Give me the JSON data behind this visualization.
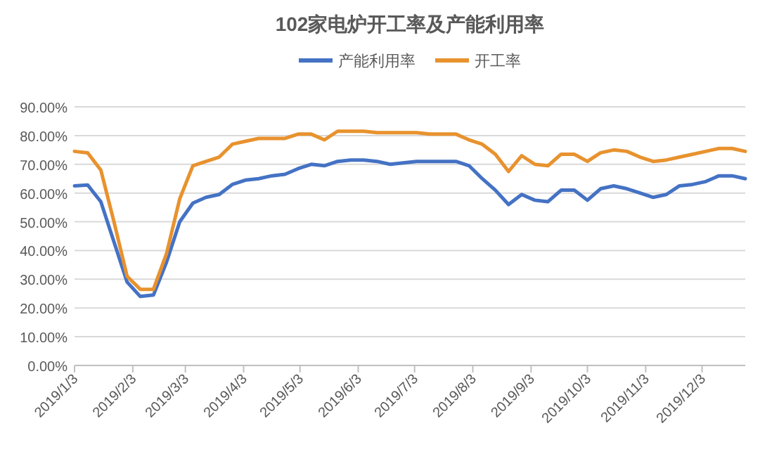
{
  "chart_data": {
    "type": "line",
    "title": "102家电炉开工率及产能利用率",
    "x": [
      "2019-01-03",
      "2019-01-10",
      "2019-01-17",
      "2019-01-24",
      "2019-01-31",
      "2019-02-07",
      "2019-02-14",
      "2019-02-21",
      "2019-02-28",
      "2019-03-07",
      "2019-03-14",
      "2019-03-21",
      "2019-03-28",
      "2019-04-04",
      "2019-04-11",
      "2019-04-18",
      "2019-04-25",
      "2019-05-02",
      "2019-05-09",
      "2019-05-16",
      "2019-05-23",
      "2019-05-30",
      "2019-06-06",
      "2019-06-13",
      "2019-06-20",
      "2019-06-27",
      "2019-07-04",
      "2019-07-11",
      "2019-07-18",
      "2019-07-25",
      "2019-08-01",
      "2019-08-08",
      "2019-08-15",
      "2019-08-22",
      "2019-08-29",
      "2019-09-05",
      "2019-09-12",
      "2019-09-19",
      "2019-09-26",
      "2019-10-03",
      "2019-10-10",
      "2019-10-17",
      "2019-10-24",
      "2019-10-31",
      "2019-11-07",
      "2019-11-14",
      "2019-11-21",
      "2019-11-28",
      "2019-12-05",
      "2019-12-12",
      "2019-12-19",
      "2019-12-26"
    ],
    "series": [
      {
        "name": "产能利用率",
        "color": "#4472c4",
        "values": [
          62.5,
          62.8,
          57,
          43,
          29,
          24,
          24.5,
          36,
          50,
          56.5,
          58.5,
          59.5,
          63,
          64.5,
          65,
          66,
          66.5,
          68.5,
          70,
          69.5,
          71,
          71.5,
          71.5,
          71,
          70,
          70.5,
          71,
          71,
          71,
          71,
          69.5,
          65,
          61,
          56,
          59.5,
          57.5,
          57,
          61,
          61,
          57.5,
          61.5,
          62.5,
          61.5,
          60,
          58.5,
          59.5,
          62.5,
          63,
          64,
          66,
          66,
          65
        ]
      },
      {
        "name": "开工率",
        "color": "#e8922e",
        "values": [
          74.5,
          74,
          68,
          50,
          31,
          26.5,
          26.5,
          39,
          58,
          69.5,
          71,
          72.5,
          77,
          78,
          79,
          79,
          79,
          80.5,
          80.5,
          78.5,
          81.5,
          81.5,
          81.5,
          81,
          81,
          81,
          81,
          80.5,
          80.5,
          80.5,
          78.5,
          77,
          73.5,
          67.5,
          73,
          70,
          69.5,
          73.5,
          73.5,
          71,
          74,
          75,
          74.5,
          72.5,
          71,
          71.5,
          72.5,
          73.5,
          74.5,
          75.5,
          75.5,
          74.5
        ]
      }
    ],
    "xlim": [
      "2019-01-03",
      "2019-12-26"
    ],
    "xticks": [
      {
        "value": "2019-01-03",
        "label": "2019/1/3"
      },
      {
        "value": "2019-02-03",
        "label": "2019/2/3"
      },
      {
        "value": "2019-03-03",
        "label": "2019/3/3"
      },
      {
        "value": "2019-04-03",
        "label": "2019/4/3"
      },
      {
        "value": "2019-05-03",
        "label": "2019/5/3"
      },
      {
        "value": "2019-06-03",
        "label": "2019/6/3"
      },
      {
        "value": "2019-07-03",
        "label": "2019/7/3"
      },
      {
        "value": "2019-08-03",
        "label": "2019/8/3"
      },
      {
        "value": "2019-09-03",
        "label": "2019/9/3"
      },
      {
        "value": "2019-10-03",
        "label": "2019/10/3"
      },
      {
        "value": "2019-11-03",
        "label": "2019/11/3"
      },
      {
        "value": "2019-12-03",
        "label": "2019/12/3"
      }
    ],
    "ylim": [
      0,
      90
    ],
    "yticks": [
      {
        "value": 0,
        "label": "0.00%"
      },
      {
        "value": 10,
        "label": "10.00%"
      },
      {
        "value": 20,
        "label": "20.00%"
      },
      {
        "value": 30,
        "label": "30.00%"
      },
      {
        "value": 40,
        "label": "40.00%"
      },
      {
        "value": 50,
        "label": "50.00%"
      },
      {
        "value": 60,
        "label": "60.00%"
      },
      {
        "value": 70,
        "label": "70.00%"
      },
      {
        "value": 80,
        "label": "80.00%"
      },
      {
        "value": 90,
        "label": "90.00%"
      }
    ],
    "grid": "y",
    "legend": "top"
  }
}
